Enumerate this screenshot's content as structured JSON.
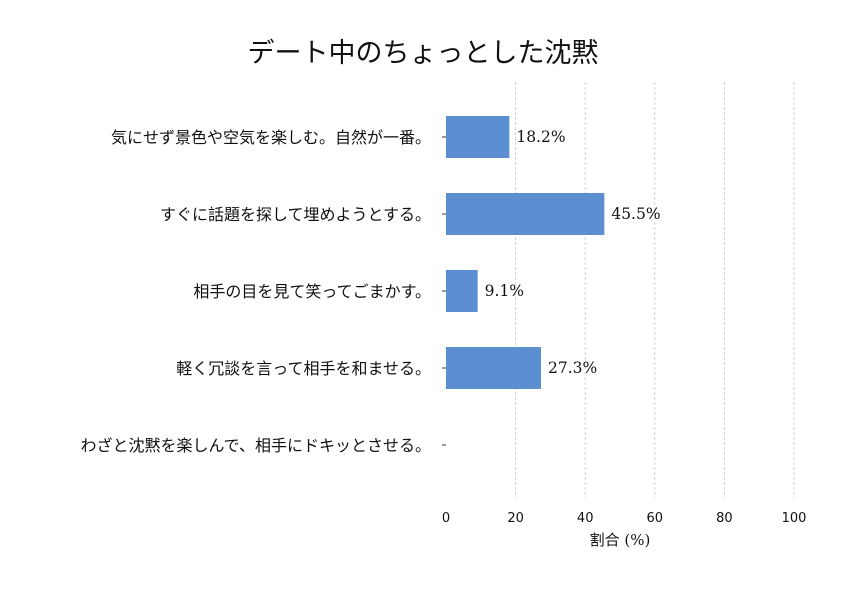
{
  "chart_data": {
    "type": "bar",
    "orientation": "horizontal",
    "title": "デート中のちょっとした沈黙",
    "xlabel": "割合 (%)",
    "ylabel": "",
    "categories": [
      "気にせず景色や空気を楽しむ。自然が一番。",
      "すぐに話題を探して埋めようとする。",
      "相手の目を見て笑ってごまかす。",
      "軽く冗談を言って相手を和ませる。",
      "わざと沈黙を楽しんで、相手にドキッとさせる。"
    ],
    "values": [
      18.2,
      45.5,
      9.1,
      27.3,
      0
    ],
    "value_labels": [
      "18.2%",
      "45.5%",
      "9.1%",
      "27.3%",
      ""
    ],
    "xlim": [
      0,
      100
    ],
    "xticks": [
      "0",
      "20",
      "40",
      "60",
      "80",
      "100"
    ],
    "grid": "vertical dashed",
    "bar_color": "#5b8fd1",
    "grid_color": "#c8c8c8"
  }
}
